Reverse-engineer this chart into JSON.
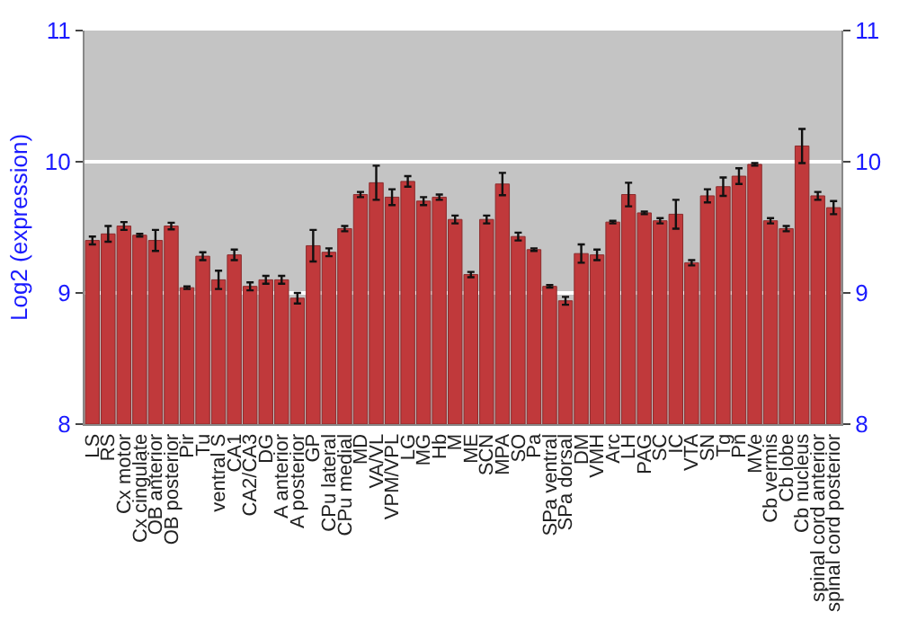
{
  "chart_data": {
    "type": "bar",
    "ylabel": "Log2 (expression)",
    "categories": [
      "LS",
      "RS",
      "Cx motor",
      "Cx cingulate",
      "OB anterior",
      "OB posterior",
      "Pir",
      "Tu",
      "ventral S",
      "CA1",
      "CA2/CA3",
      "DG",
      "A anterior",
      "A posterior",
      "GP",
      "CPu lateral",
      "CPu medial",
      "MD",
      "VA/VL",
      "VPM/VPL",
      "LG",
      "MG",
      "Hb",
      "M",
      "ME",
      "SCN",
      "MPA",
      "SO",
      "Pa",
      "SPa ventral",
      "SPa dorsal",
      "DM",
      "VMH",
      "Arc",
      "LH",
      "PAG",
      "SC",
      "IC",
      "VTA",
      "SN",
      "Tg",
      "Pn",
      "MVe",
      "Cb vermis",
      "Cb lobe",
      "Cb nucleus",
      "spinal cord anterior",
      "spinal cord posterior"
    ],
    "series": [
      {
        "color": "#c0393b",
        "values": [
          9.4,
          9.45,
          9.51,
          9.44,
          9.4,
          9.51,
          9.04,
          9.28,
          9.1,
          9.29,
          9.05,
          9.1,
          9.1,
          8.96,
          9.36,
          9.31,
          9.49,
          9.75,
          9.84,
          9.73,
          9.85,
          9.7,
          9.73,
          9.56,
          9.14,
          9.56,
          9.83,
          9.43,
          9.33,
          9.05,
          8.94,
          9.3,
          9.29,
          9.54,
          9.75,
          9.61,
          9.55,
          9.6,
          9.23,
          9.74,
          9.81,
          9.89,
          9.98,
          9.55,
          9.49,
          10.12,
          9.74,
          9.65
        ],
        "errors": [
          0.03,
          0.06,
          0.03,
          0.01,
          0.08,
          0.025,
          0.01,
          0.03,
          0.07,
          0.04,
          0.03,
          0.03,
          0.03,
          0.04,
          0.12,
          0.03,
          0.02,
          0.02,
          0.13,
          0.06,
          0.04,
          0.03,
          0.02,
          0.03,
          0.02,
          0.03,
          0.085,
          0.03,
          0.01,
          0.01,
          0.03,
          0.07,
          0.04,
          0.01,
          0.09,
          0.01,
          0.02,
          0.11,
          0.02,
          0.05,
          0.07,
          0.06,
          0.01,
          0.02,
          0.02,
          0.13,
          0.03,
          0.05
        ]
      }
    ],
    "ylim": [
      8,
      11
    ],
    "yticks": [
      8,
      9,
      10,
      11
    ],
    "y2lim": [
      8,
      11
    ],
    "y2ticks": [
      8,
      9,
      10,
      11
    ],
    "grid": "y"
  }
}
